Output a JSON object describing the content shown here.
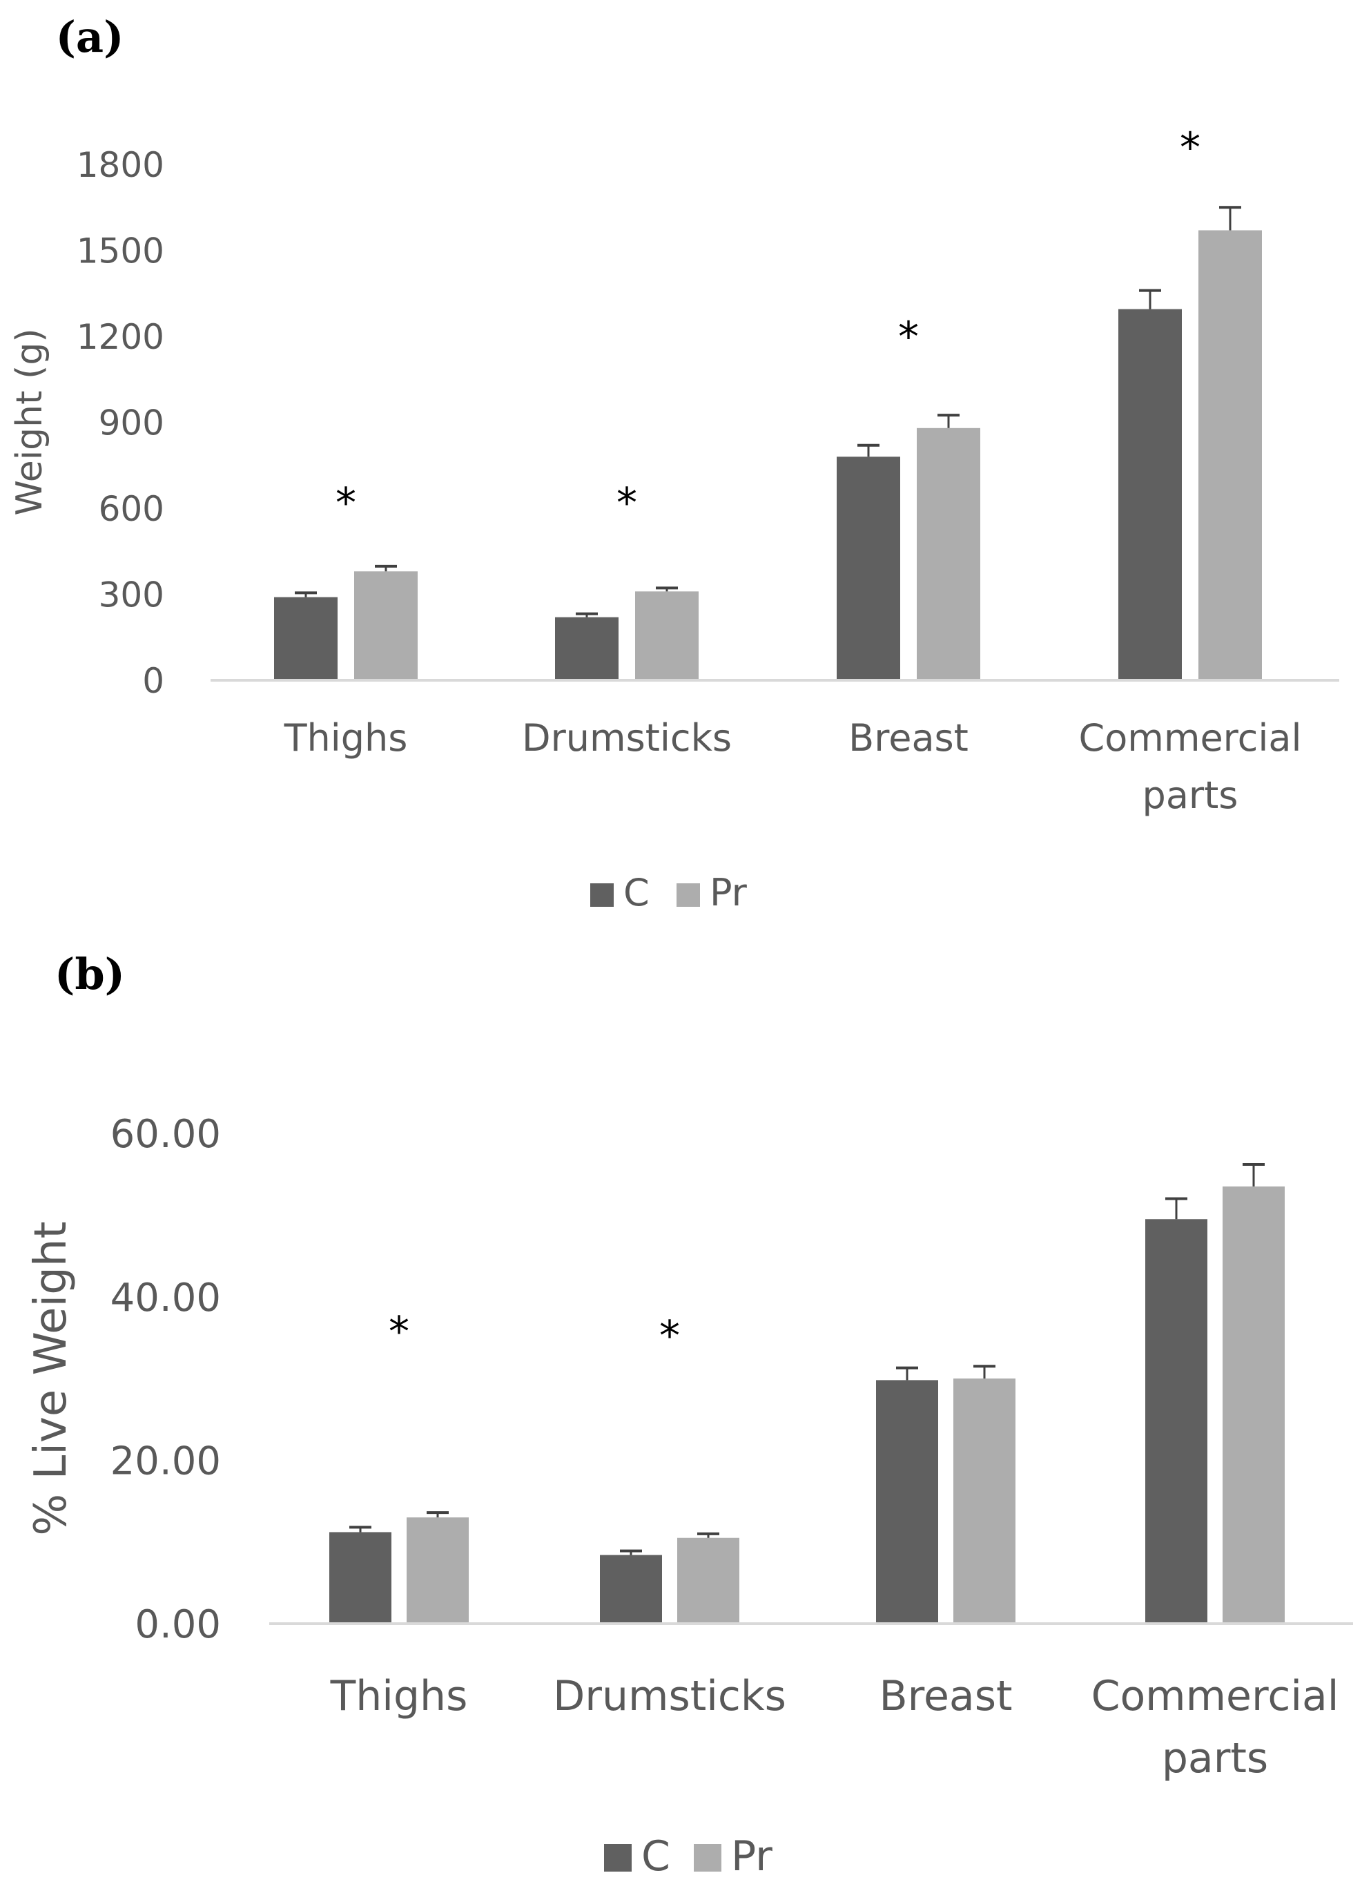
{
  "colors": {
    "C": "#606060",
    "Pr": "#adadad",
    "axis": "#d9d9d9",
    "text": "#595959",
    "error_bar": "#404040"
  },
  "chart_data": [
    {
      "panel_label": "(a)",
      "type": "bar",
      "title": "",
      "xlabel": "",
      "ylabel": "Weight (g)",
      "ylim": [
        0,
        1800
      ],
      "yticks": [
        "0",
        "300",
        "600",
        "900",
        "1200",
        "1500",
        "1800"
      ],
      "ytick_values": [
        0,
        300,
        600,
        900,
        1200,
        1500,
        1800
      ],
      "categories": [
        [
          "Thighs"
        ],
        [
          "Drumsticks"
        ],
        [
          "Breast"
        ],
        [
          "Commercial",
          "parts"
        ]
      ],
      "series": [
        {
          "name": "C",
          "values": [
            290,
            220,
            780,
            1295
          ],
          "errors": [
            15,
            12,
            40,
            65
          ]
        },
        {
          "name": "Pr",
          "values": [
            380,
            310,
            880,
            1570
          ],
          "errors": [
            18,
            12,
            45,
            80
          ]
        }
      ],
      "significance": [
        "*",
        "*",
        "*",
        "*"
      ],
      "significance_y": [
        570,
        570,
        1150,
        1810
      ],
      "legend": {
        "placement": "bottom-center",
        "entries": [
          "C",
          "Pr"
        ]
      },
      "grid": false
    },
    {
      "panel_label": "(b)",
      "type": "bar",
      "title": "",
      "xlabel": "",
      "ylabel": "% Live Weight",
      "ylim": [
        0,
        60
      ],
      "yticks": [
        "0.00",
        "20.00",
        "40.00",
        "60.00"
      ],
      "ytick_values": [
        0,
        20,
        40,
        60
      ],
      "categories": [
        [
          "Thighs"
        ],
        [
          "Drumsticks"
        ],
        [
          "Breast"
        ],
        [
          "Commercial",
          "parts"
        ]
      ],
      "series": [
        {
          "name": "C",
          "values": [
            11.2,
            8.4,
            29.8,
            49.5
          ],
          "errors": [
            0.6,
            0.5,
            1.5,
            2.5
          ]
        },
        {
          "name": "Pr",
          "values": [
            13.0,
            10.5,
            30.0,
            53.5
          ],
          "errors": [
            0.6,
            0.5,
            1.5,
            2.7
          ]
        }
      ],
      "significance": [
        "*",
        "*",
        "",
        ""
      ],
      "significance_y": [
        34,
        33.5,
        null,
        null
      ],
      "legend": {
        "placement": "bottom-center",
        "entries": [
          "C",
          "Pr"
        ]
      },
      "grid": false
    }
  ]
}
